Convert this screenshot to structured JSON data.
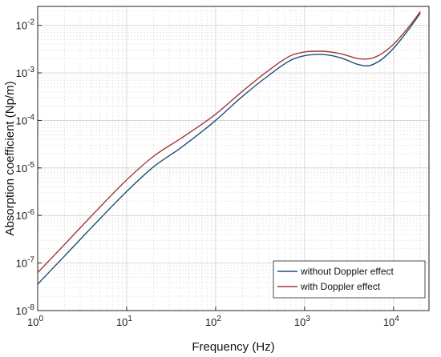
{
  "chart_data": {
    "type": "line",
    "title": "",
    "xlabel": "Frequency (Hz)",
    "ylabel": "Absorption coefficient (Np/m)",
    "x_scale": "log",
    "y_scale": "log",
    "xlim": [
      1,
      25000
    ],
    "ylim": [
      1e-08,
      0.025
    ],
    "grid": true,
    "minor_grid": true,
    "legend_position": "bottom-right",
    "x_ticks": [
      {
        "base": "10",
        "exp": "0"
      },
      {
        "base": "10",
        "exp": "1"
      },
      {
        "base": "10",
        "exp": "2"
      },
      {
        "base": "10",
        "exp": "3"
      },
      {
        "base": "10",
        "exp": "4"
      }
    ],
    "y_ticks": [
      {
        "base": "10",
        "exp": "-8"
      },
      {
        "base": "10",
        "exp": "-7"
      },
      {
        "base": "10",
        "exp": "-6"
      },
      {
        "base": "10",
        "exp": "-5"
      },
      {
        "base": "10",
        "exp": "-4"
      },
      {
        "base": "10",
        "exp": "-3"
      },
      {
        "base": "10",
        "exp": "-2"
      }
    ],
    "x": [
      1,
      2,
      5,
      10,
      20,
      40,
      70,
      100,
      200,
      400,
      700,
      1000,
      1500,
      2500,
      4000,
      5000,
      7000,
      10000,
      15000,
      20000
    ],
    "series": [
      {
        "name": "without Doppler effect",
        "color": "#1f4e79",
        "values": [
          3.6e-08,
          1.4e-07,
          8.5e-07,
          3.2e-06,
          1.05e-05,
          2.6e-05,
          5.8e-05,
          0.0001,
          0.00032,
          0.0009,
          0.00185,
          0.0023,
          0.00245,
          0.0021,
          0.0015,
          0.0014,
          0.0018,
          0.0033,
          0.0085,
          0.018
        ]
      },
      {
        "name": "with Doppler effect",
        "color": "#a33a3a",
        "values": [
          6.3e-08,
          2.45e-07,
          1.5e-06,
          5.6e-06,
          1.75e-05,
          4.1e-05,
          8.3e-05,
          0.000135,
          0.00041,
          0.00115,
          0.0023,
          0.00275,
          0.00285,
          0.00255,
          0.002,
          0.00195,
          0.0024,
          0.004,
          0.0095,
          0.0195
        ]
      }
    ]
  }
}
